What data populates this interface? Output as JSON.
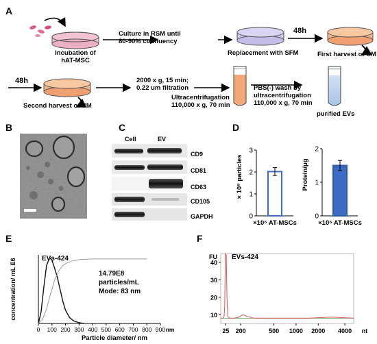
{
  "panels": {
    "a": "A",
    "b": "B",
    "c": "C",
    "d": "D",
    "e": "E",
    "f": "F"
  },
  "panel_a": {
    "incubation": [
      "Incubation of",
      "hAT-MSC"
    ],
    "culture": [
      "Culture in RSM until",
      "80-90% confluency"
    ],
    "replacement": "Replacement with SFM",
    "wait1": "48h",
    "first_harvest": "First harvest of CM",
    "wait2": "48h",
    "second_harvest": "Second harvest of CM",
    "centrifuge": [
      "2000 x g, 15 min;",
      "0.22 um filtration"
    ],
    "ultra": [
      "Ultracentrifugation",
      "110,000 x g, 70 min"
    ],
    "wash": [
      "PBS(-) wash by",
      "ultracentrifugation",
      "110,000 x g, 70 min"
    ],
    "purified": "purified EVs"
  },
  "panel_c": {
    "columns": [
      "Cell",
      "EV"
    ],
    "markers": [
      "CD9",
      "CD81",
      "CD63",
      "CD105",
      "GAPDH"
    ]
  },
  "panel_d": {
    "left_chart": {
      "type": "bar",
      "ylabel": "× 10⁸ particles",
      "yticks": [
        "0",
        "1",
        "2",
        "3"
      ],
      "ylim": [
        0,
        3
      ],
      "category": "×10⁶ AT-MSCs",
      "value": 2.02,
      "error": 0.18,
      "fill": "#ffffff",
      "stroke": "#3b6bc4"
    },
    "right_chart": {
      "type": "bar",
      "ylabel": "Protein/μg",
      "yticks": [
        "0",
        "1",
        "2"
      ],
      "ylim": [
        0,
        2
      ],
      "category": "×10⁶ AT-MSCs",
      "value": 1.5,
      "error": 0.15,
      "fill": "#3b6bc4",
      "stroke": "#2f5aa8"
    }
  },
  "chart_data": [
    {
      "type": "bar",
      "ylabel": "× 10⁸ particles",
      "categories": [
        "×10⁶ AT-MSCs"
      ],
      "values": [
        2.02
      ],
      "ylim": [
        0,
        3
      ]
    },
    {
      "type": "bar",
      "ylabel": "Protein/μg",
      "categories": [
        "×10⁶ AT-MSCs"
      ],
      "values": [
        1.5
      ],
      "ylim": [
        0,
        2
      ]
    },
    {
      "type": "line",
      "title": "EVs-424",
      "xlabel": "Particle diameter/ nm",
      "ylabel": "concentration/ mL E6",
      "xticks": [
        "0",
        "100",
        "200",
        "300",
        "400",
        "500",
        "600",
        "700",
        "800",
        "900"
      ],
      "xunit": "nm",
      "xlim": [
        0,
        900
      ],
      "annotation": [
        "14.79E8",
        "particles/mL",
        "Mode: 83 nm"
      ],
      "series": [
        {
          "x": [
            0,
            20,
            40,
            60,
            83,
            100,
            120,
            140,
            160,
            180,
            200,
            230,
            260,
            300,
            340
          ],
          "y": [
            0.0,
            0.18,
            0.55,
            0.88,
            1.0,
            0.96,
            0.84,
            0.7,
            0.52,
            0.34,
            0.2,
            0.09,
            0.04,
            0.01,
            0.0
          ]
        },
        {
          "x": [
            0,
            30,
            60,
            90,
            120,
            150,
            180,
            210,
            250,
            300,
            400,
            500,
            600,
            700,
            800
          ],
          "y": [
            0.0,
            0.06,
            0.22,
            0.45,
            0.66,
            0.8,
            0.88,
            0.92,
            0.95,
            0.97,
            0.98,
            0.98,
            0.98,
            0.98,
            0.98
          ]
        }
      ]
    },
    {
      "type": "line",
      "title": "EVs-424",
      "ylabel": "FU",
      "yticks": [
        "10",
        "20",
        "30",
        "40"
      ],
      "xticks": [
        "25",
        "200",
        "500",
        "1000",
        "2000",
        "4000"
      ],
      "xunit": "nt",
      "series": [
        {
          "x": [
            0,
            10,
            15,
            18,
            21,
            25,
            28,
            32,
            40,
            60,
            80,
            100,
            120,
            150,
            200,
            300,
            400,
            500,
            600
          ],
          "y": [
            8,
            8,
            9,
            15,
            45,
            44,
            20,
            9,
            8,
            8,
            8.5,
            10,
            9,
            8,
            8,
            8,
            8,
            8.6,
            8
          ]
        }
      ]
    }
  ]
}
